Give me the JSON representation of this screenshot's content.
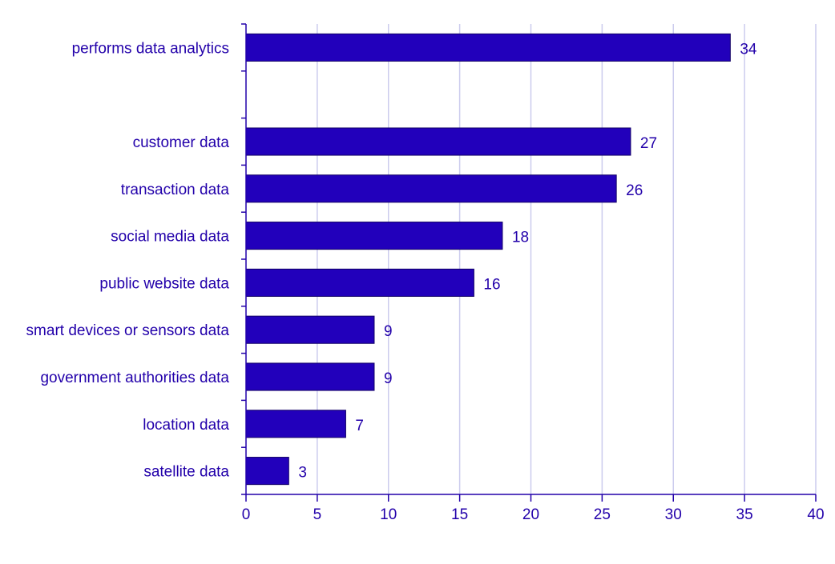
{
  "chart_data": {
    "type": "bar",
    "orientation": "horizontal",
    "title": "",
    "xlabel": "",
    "ylabel": "",
    "xlim": [
      0,
      40
    ],
    "xticks": [
      0,
      5,
      10,
      15,
      20,
      25,
      30,
      35,
      40
    ],
    "grid": true,
    "legend": "none",
    "colors": {
      "bar": "#2200bb",
      "text": "#2200aa",
      "axis": "#2200aa",
      "grid": "#ccccee"
    },
    "categories": [
      "performs data analytics",
      "",
      "customer data",
      "transaction data",
      "social media data",
      "public website data",
      "smart devices or sensors data",
      "government authorities data",
      "location data",
      "satellite data"
    ],
    "values": [
      34,
      null,
      27,
      26,
      18,
      16,
      9,
      9,
      7,
      3
    ],
    "value_labels": [
      "34",
      "",
      "27",
      "26",
      "18",
      "16",
      "9",
      "9",
      "7",
      "3"
    ]
  }
}
